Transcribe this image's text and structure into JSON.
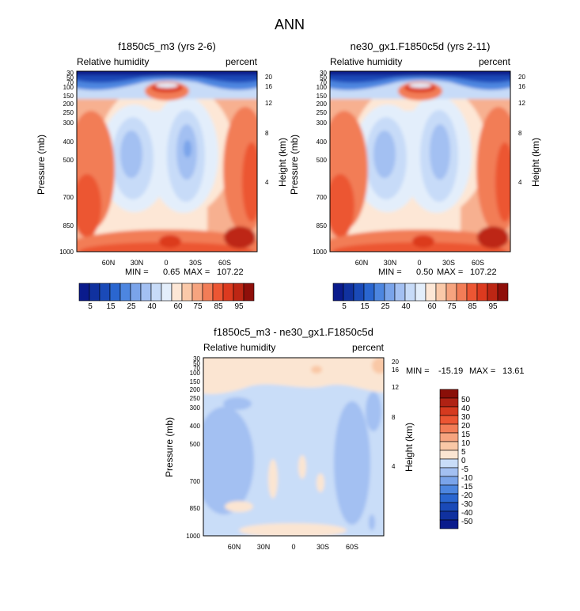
{
  "figure": {
    "title": "ANN"
  },
  "colormaps": {
    "abs": [
      "#0a1b8c",
      "#10319f",
      "#1a4ab8",
      "#2a66d0",
      "#4d86e0",
      "#7aa4ea",
      "#a3c0f2",
      "#c7dbf8",
      "#e3eefb",
      "#fde7d6",
      "#fac9a9",
      "#f6a47f",
      "#f27d57",
      "#ec5633",
      "#dc3a1f",
      "#bd2614",
      "#8f0f0a"
    ],
    "diff": [
      "#0a1b8c",
      "#10319f",
      "#1a4ab8",
      "#2a66d0",
      "#4d86e0",
      "#7aa4ea",
      "#a3c0f2",
      "#c9ddf8",
      "#fbe5d2",
      "#f9c8a6",
      "#f6a47f",
      "#f27d57",
      "#ec5633",
      "#d63a1f",
      "#b02214",
      "#8a0f08"
    ]
  },
  "chart_data": [
    {
      "type": "contour",
      "title": "f1850c5_m3 (yrs 2-6)",
      "left_label": "Relative humidity",
      "right_label": "percent",
      "ylabel": "Pressure (mb)",
      "ylabel2": "Height (km)",
      "x_ticks": [
        "60N",
        "30N",
        "0",
        "30S",
        "60S"
      ],
      "y_ticks": [
        "30",
        "50",
        "70",
        "100",
        "150",
        "200",
        "250",
        "300",
        "400",
        "500",
        "700",
        "850",
        "1000"
      ],
      "y2_ticks": [
        "20",
        "16",
        "12",
        "8",
        "4"
      ],
      "min_label": "MIN =",
      "min_value": "0.65",
      "max_label": "MAX =",
      "max_value": "107.22",
      "colorbar_labels": [
        "5",
        "15",
        "25",
        "40",
        "60",
        "75",
        "85",
        "95"
      ]
    },
    {
      "type": "contour",
      "title": "ne30_gx1.F1850c5d (yrs 2-11)",
      "left_label": "Relative humidity",
      "right_label": "percent",
      "ylabel": "Pressure (mb)",
      "ylabel2": "Height (km)",
      "x_ticks": [
        "60N",
        "30N",
        "0",
        "30S",
        "60S"
      ],
      "y_ticks": [
        "30",
        "50",
        "70",
        "100",
        "150",
        "200",
        "250",
        "300",
        "400",
        "500",
        "700",
        "850",
        "1000"
      ],
      "y2_ticks": [
        "20",
        "16",
        "12",
        "8",
        "4"
      ],
      "min_label": "MIN =",
      "min_value": "0.50",
      "max_label": "MAX =",
      "max_value": "107.22",
      "colorbar_labels": [
        "5",
        "15",
        "25",
        "40",
        "60",
        "75",
        "85",
        "95"
      ]
    },
    {
      "type": "contour",
      "title": "f1850c5_m3 - ne30_gx1.F1850c5d",
      "left_label": "Relative humidity",
      "right_label": "percent",
      "ylabel": "Pressure (mb)",
      "ylabel2": "Height (km)",
      "x_ticks": [
        "60N",
        "30N",
        "0",
        "30S",
        "60S"
      ],
      "y_ticks": [
        "30",
        "50",
        "70",
        "100",
        "150",
        "200",
        "250",
        "300",
        "400",
        "500",
        "700",
        "850",
        "1000"
      ],
      "y2_ticks": [
        "20",
        "16",
        "12",
        "8",
        "4"
      ],
      "min_label": "MIN =",
      "min_value": "-15.19",
      "max_label": "MAX =",
      "max_value": "13.61",
      "colorbar_labels": [
        "50",
        "40",
        "30",
        "20",
        "15",
        "10",
        "5",
        "0",
        "-5",
        "-10",
        "-15",
        "-20",
        "-30",
        "-40",
        "-50"
      ]
    }
  ]
}
